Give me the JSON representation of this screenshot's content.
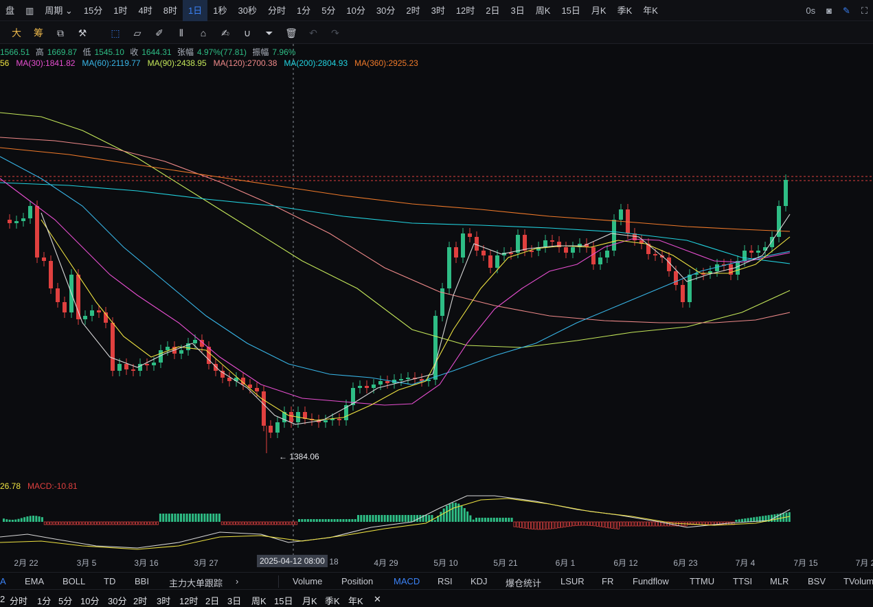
{
  "topbar": {
    "items": [
      "盘",
      "▥",
      "周期",
      "15分",
      "1时",
      "4时",
      "8时",
      "1日",
      "1秒",
      "30秒",
      "分时",
      "1分",
      "5分",
      "10分",
      "30分",
      "2时",
      "3时",
      "12时",
      "2日",
      "3日",
      "周K",
      "15日",
      "月K",
      "季K",
      "年K"
    ],
    "active_index": 7,
    "right": [
      "0s",
      "camera-icon",
      "pen-icon",
      "expand-icon"
    ]
  },
  "toolbar": {
    "label_big": "大",
    "label_chou": "筹"
  },
  "ohlc": {
    "open": "1566.51",
    "high_label": "高",
    "high": "1669.87",
    "low_label": "低",
    "low": "1545.10",
    "close_label": "收",
    "close": "1644.31",
    "change_label": "张幅",
    "change": "4.97%(77.81)",
    "amp_label": "振幅",
    "amp": "7.96%"
  },
  "ma_labels": [
    {
      "text": "56",
      "color": "#f0e442"
    },
    {
      "text": "MA(30):1841.82",
      "color": "#e84fd1"
    },
    {
      "text": "MA(60):2119.77",
      "color": "#38b6e8"
    },
    {
      "text": "MA(90):2438.95",
      "color": "#c5e85a"
    },
    {
      "text": "MA(120):2700.38",
      "color": "#f08a8a"
    },
    {
      "text": "MA(200):2804.93",
      "color": "#22d3e0"
    },
    {
      "text": "MA(360):2925.23",
      "color": "#f07a2a"
    }
  ],
  "macd_labels": [
    {
      "text": "26.78",
      "color": "#f0e442"
    },
    {
      "text": "MACD:-10.81",
      "color": "#e0403f"
    }
  ],
  "low_marker": "← 1384.06",
  "x_axis": {
    "labels": [
      {
        "text": "2月 22",
        "x": 38
      },
      {
        "text": "3月 5",
        "x": 126
      },
      {
        "text": "3月 16",
        "x": 213
      },
      {
        "text": "3月 27",
        "x": 300
      },
      {
        "text": "18",
        "x": 486
      },
      {
        "text": "4月 29",
        "x": 562
      },
      {
        "text": "5月 10",
        "x": 649
      },
      {
        "text": "5月 21",
        "x": 736
      },
      {
        "text": "6月 1",
        "x": 823
      },
      {
        "text": "6月 12",
        "x": 911
      },
      {
        "text": "6月 23",
        "x": 998
      },
      {
        "text": "7月 4",
        "x": 1085
      },
      {
        "text": "7月 15",
        "x": 1173
      },
      {
        "text": "7月 2",
        "x": 1260
      }
    ],
    "crosshair_label": "2025-04-12 08:00"
  },
  "indicators": {
    "left": [
      "A",
      "EMA",
      "BOLL",
      "TD",
      "BBI",
      "主力大单跟踪",
      "›"
    ],
    "right": [
      "Volume",
      "Position",
      "MACD",
      "RSI",
      "KDJ",
      "爆仓统计",
      "LSUR",
      "FR",
      "Fundflow",
      "TTMU",
      "TTSI",
      "MLR",
      "BSV",
      "TVolum"
    ],
    "active": "MACD"
  },
  "bottom": [
    "2",
    "分时",
    "1分",
    "5分",
    "10分",
    "30分",
    "2时",
    "3时",
    "12时",
    "2日",
    "3日",
    "周K",
    "15日",
    "月K",
    "季K",
    "年K",
    "✕"
  ],
  "colors": {
    "up": "#2ebd85",
    "down": "#e0403f",
    "accent": "#3b82f6"
  }
}
